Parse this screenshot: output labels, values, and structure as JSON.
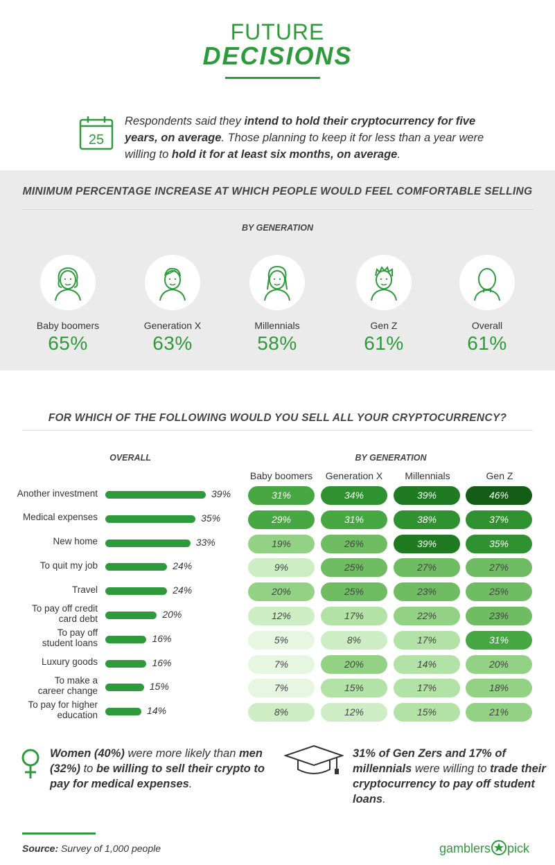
{
  "header": {
    "title_line1": "FUTURE",
    "title_line2": "DECISIONS"
  },
  "intro": {
    "icon": "calendar-icon",
    "calendar_number": "25",
    "parts": [
      {
        "text": "Respondents said they ",
        "bold": false
      },
      {
        "text": "intend to hold their cryptocurrency for five years, on average",
        "bold": true
      },
      {
        "text": ". Those planning to keep it for less than a year were willing to ",
        "bold": false
      },
      {
        "text": "hold it for at least six months, on average",
        "bold": true
      },
      {
        "text": ".",
        "bold": false
      }
    ]
  },
  "section1": {
    "title": "MINIMUM PERCENTAGE INCREASE AT WHICH PEOPLE WOULD FEEL COMFORTABLE SELLING",
    "subtitle": "BY GENERATION"
  },
  "section2": {
    "title": "FOR WHICH OF THE FOLLOWING WOULD YOU SELL ALL YOUR CRYPTOCURRENCY?",
    "overall_header": "OVERALL",
    "bygen_header": "BY GENERATION",
    "columns": [
      "Baby boomers",
      "Generation X",
      "Millennials",
      "Gen Z"
    ]
  },
  "chart_data": [
    {
      "type": "bar",
      "title": "MINIMUM PERCENTAGE INCREASE AT WHICH PEOPLE WOULD FEEL COMFORTABLE SELLING",
      "subtitle": "BY GENERATION",
      "categories": [
        "Baby boomers",
        "Generation X",
        "Millennials",
        "Gen Z",
        "Overall"
      ],
      "values": [
        65,
        63,
        58,
        61,
        61
      ],
      "value_labels": [
        "65%",
        "63%",
        "58%",
        "61%",
        "61%"
      ],
      "avatar_icons": [
        "boomer-avatar-icon",
        "genx-avatar-icon",
        "millennial-avatar-icon",
        "genz-avatar-icon",
        "overall-avatar-icon"
      ]
    },
    {
      "type": "bar",
      "orientation": "horizontal",
      "title": "OVERALL",
      "categories": [
        "Another investment",
        "Medical expenses",
        "New home",
        "To quit my job",
        "Travel",
        "To pay off credit card debt",
        "To pay off student loans",
        "Luxury goods",
        "To make a career change",
        "To pay for higher education"
      ],
      "label_lines": [
        [
          "Another investment"
        ],
        [
          "Medical expenses"
        ],
        [
          "New home"
        ],
        [
          "To quit my job"
        ],
        [
          "Travel"
        ],
        [
          "To pay off credit",
          "card debt"
        ],
        [
          "To pay off",
          "student loans"
        ],
        [
          "Luxury goods"
        ],
        [
          "To make a",
          "career change"
        ],
        [
          "To pay for higher",
          "education"
        ]
      ],
      "values": [
        39,
        35,
        33,
        24,
        24,
        20,
        16,
        16,
        15,
        14
      ],
      "value_labels": [
        "39%",
        "35%",
        "33%",
        "24%",
        "24%",
        "20%",
        "16%",
        "16%",
        "15%",
        "14%"
      ]
    },
    {
      "type": "heatmap",
      "title": "BY GENERATION",
      "columns": [
        "Baby boomers",
        "Generation X",
        "Millennials",
        "Gen Z"
      ],
      "rows": [
        "Another investment",
        "Medical expenses",
        "New home",
        "To quit my job",
        "Travel",
        "To pay off credit card debt",
        "To pay off student loans",
        "Luxury goods",
        "To make a career change",
        "To pay for higher education"
      ],
      "values": [
        [
          31,
          34,
          39,
          46
        ],
        [
          29,
          31,
          38,
          37
        ],
        [
          19,
          26,
          39,
          35
        ],
        [
          9,
          25,
          27,
          27
        ],
        [
          20,
          25,
          23,
          25
        ],
        [
          12,
          17,
          22,
          23
        ],
        [
          5,
          8,
          17,
          31
        ],
        [
          7,
          20,
          14,
          20
        ],
        [
          7,
          15,
          17,
          18
        ],
        [
          8,
          12,
          15,
          21
        ]
      ],
      "labels": [
        [
          "31%",
          "34%",
          "39%",
          "46%"
        ],
        [
          "29%",
          "31%",
          "38%",
          "37%"
        ],
        [
          "19%",
          "26%",
          "39%",
          "35%"
        ],
        [
          "9%",
          "25%",
          "27%",
          "27%"
        ],
        [
          "20%",
          "25%",
          "23%",
          "25%"
        ],
        [
          "12%",
          "17%",
          "22%",
          "23%"
        ],
        [
          "5%",
          "8%",
          "17%",
          "31%"
        ],
        [
          "7%",
          "20%",
          "14%",
          "20%"
        ],
        [
          "7%",
          "15%",
          "17%",
          "18%"
        ],
        [
          "8%",
          "12%",
          "15%",
          "21%"
        ]
      ]
    }
  ],
  "notes": {
    "left_icon": "female-symbol-icon",
    "left": [
      {
        "text": "Women (40%)",
        "bold": true
      },
      {
        "text": " were more likely than ",
        "bold": false
      },
      {
        "text": "men (32%)",
        "bold": true
      },
      {
        "text": " to ",
        "bold": false
      },
      {
        "text": "be willing to sell their crypto to pay for medical expenses",
        "bold": true
      },
      {
        "text": ".",
        "bold": false
      }
    ],
    "right_icon": "graduation-cap-icon",
    "right": [
      {
        "text": "31% of Gen Zers and 17% of millennials",
        "bold": true
      },
      {
        "text": " were willing to ",
        "bold": false
      },
      {
        "text": "trade their cryptocurrency to pay off student loans",
        "bold": true
      },
      {
        "text": ".",
        "bold": false
      }
    ]
  },
  "footer": {
    "source_label": "Source:",
    "source_text": " Survey of 1,000 people",
    "brand_left": "gamblers",
    "brand_right": "pick",
    "brand_icon": "star-icon"
  },
  "colors": {
    "brand_green": "#2e9a3c",
    "band_bg": "#ebebeb",
    "heat_scale": [
      "#e6f6e0",
      "#cdeec4",
      "#b2e2a5",
      "#93d184",
      "#6fbc63",
      "#47a742",
      "#2f912f",
      "#1f7a22",
      "#155c17"
    ]
  }
}
